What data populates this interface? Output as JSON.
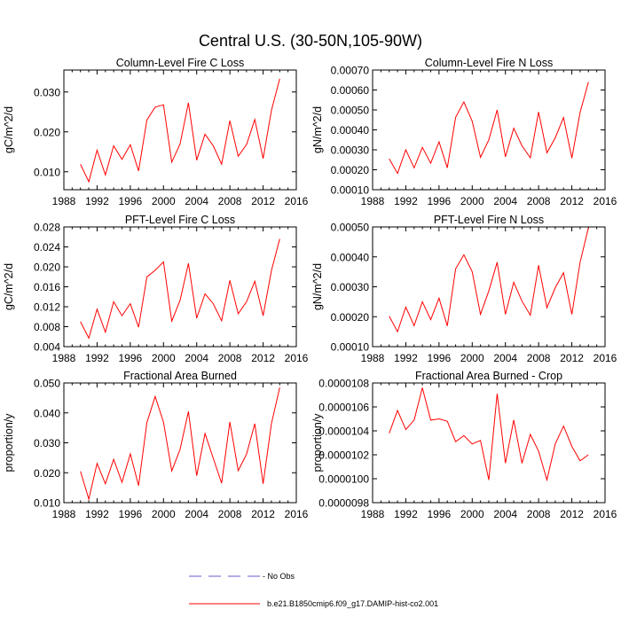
{
  "page": {
    "title": "Central U.S. (30-50N,105-90W)"
  },
  "legend": {
    "items": [
      {
        "label": "- No Obs",
        "style": "dashed",
        "color": "#6a5acd"
      },
      {
        "label": "b.e21.B1850cmip6.f09_g17.DAMIP-hist-co2.001",
        "style": "solid",
        "color": "#ff0000"
      }
    ]
  },
  "chart_data": [
    {
      "type": "line",
      "title": "Column-Level Fire C Loss",
      "ylabel": "gC/m^2/d",
      "xlim": [
        1988,
        2016
      ],
      "xticks": [
        "1988",
        "1992",
        "1996",
        "2000",
        "2004",
        "2008",
        "2012",
        "2016"
      ],
      "ylim": [
        0.0055,
        0.0355
      ],
      "yticks": [
        "0.010",
        "0.020",
        "0.030"
      ],
      "x": [
        1990,
        1991,
        1992,
        1993,
        1994,
        1995,
        1996,
        1997,
        1998,
        1999,
        2000,
        2001,
        2002,
        2003,
        2004,
        2005,
        2006,
        2007,
        2008,
        2009,
        2010,
        2011,
        2012,
        2013,
        2014
      ],
      "series": [
        {
          "color": "#ff0000",
          "values": [
            0.0119,
            0.0075,
            0.0154,
            0.0092,
            0.0165,
            0.0131,
            0.0168,
            0.0102,
            0.023,
            0.0262,
            0.0268,
            0.0124,
            0.017,
            0.0273,
            0.0129,
            0.0194,
            0.0165,
            0.0119,
            0.0228,
            0.0139,
            0.0168,
            0.0231,
            0.0133,
            0.0253,
            0.0333
          ]
        }
      ]
    },
    {
      "type": "line",
      "title": "Column-Level Fire N Loss",
      "ylabel": "gN/m^2/d",
      "xlim": [
        1988,
        2016
      ],
      "xticks": [
        "1988",
        "1992",
        "1996",
        "2000",
        "2004",
        "2008",
        "2012",
        "2016"
      ],
      "ylim": [
        0.0001,
        0.0007
      ],
      "yticks": [
        "0.00010",
        "0.00020",
        "0.00030",
        "0.00040",
        "0.00050",
        "0.00060",
        "0.00070"
      ],
      "x": [
        1990,
        1991,
        1992,
        1993,
        1994,
        1995,
        1996,
        1997,
        1998,
        1999,
        2000,
        2001,
        2002,
        2003,
        2004,
        2005,
        2006,
        2007,
        2008,
        2009,
        2010,
        2011,
        2012,
        2013,
        2014
      ],
      "series": [
        {
          "color": "#ff0000",
          "values": [
            0.000255,
            0.000182,
            0.0003,
            0.00021,
            0.000312,
            0.000233,
            0.00034,
            0.00021,
            0.000463,
            0.00054,
            0.000443,
            0.000262,
            0.00035,
            0.0005,
            0.000265,
            0.000408,
            0.00032,
            0.00026,
            0.00049,
            0.000285,
            0.00036,
            0.000462,
            0.000258,
            0.000488,
            0.00064
          ]
        }
      ]
    },
    {
      "type": "line",
      "title": "PFT-Level Fire C Loss",
      "ylabel": "gC/m^2/d",
      "xlim": [
        1988,
        2016
      ],
      "xticks": [
        "1988",
        "1992",
        "1996",
        "2000",
        "2004",
        "2008",
        "2012",
        "2016"
      ],
      "ylim": [
        0.004,
        0.028
      ],
      "yticks": [
        "0.004",
        "0.008",
        "0.012",
        "0.016",
        "0.020",
        "0.024",
        "0.028"
      ],
      "x": [
        1990,
        1991,
        1992,
        1993,
        1994,
        1995,
        1996,
        1997,
        1998,
        1999,
        2000,
        2001,
        2002,
        2003,
        2004,
        2005,
        2006,
        2007,
        2008,
        2009,
        2010,
        2011,
        2012,
        2013,
        2014
      ],
      "series": [
        {
          "color": "#ff0000",
          "values": [
            0.009,
            0.0057,
            0.0115,
            0.0069,
            0.013,
            0.0102,
            0.0126,
            0.0079,
            0.018,
            0.0193,
            0.021,
            0.0091,
            0.0133,
            0.0207,
            0.0097,
            0.0146,
            0.0126,
            0.0092,
            0.0173,
            0.0106,
            0.013,
            0.0171,
            0.0102,
            0.0192,
            0.0256
          ]
        }
      ]
    },
    {
      "type": "line",
      "title": "PFT-Level Fire N Loss",
      "ylabel": "gN/m^2/d",
      "xlim": [
        1988,
        2016
      ],
      "xticks": [
        "1988",
        "1992",
        "1996",
        "2000",
        "2004",
        "2008",
        "2012",
        "2016"
      ],
      "ylim": [
        0.0001,
        0.0005
      ],
      "yticks": [
        "0.00010",
        "0.00020",
        "0.00030",
        "0.00040",
        "0.00050"
      ],
      "x": [
        1990,
        1991,
        1992,
        1993,
        1994,
        1995,
        1996,
        1997,
        1998,
        1999,
        2000,
        2001,
        2002,
        2003,
        2004,
        2005,
        2006,
        2007,
        2008,
        2009,
        2010,
        2011,
        2012,
        2013,
        2014
      ],
      "series": [
        {
          "color": "#ff0000",
          "values": [
            0.000202,
            0.00015,
            0.000232,
            0.00017,
            0.00025,
            0.00019,
            0.000262,
            0.000169,
            0.00036,
            0.000407,
            0.00035,
            0.000208,
            0.000286,
            0.000382,
            0.000208,
            0.000315,
            0.000252,
            0.000205,
            0.000372,
            0.00023,
            0.000297,
            0.000347,
            0.000208,
            0.000382,
            0.000498
          ]
        }
      ]
    },
    {
      "type": "line",
      "title": "Fractional Area Burned",
      "ylabel": "proportion/y",
      "xlim": [
        1988,
        2016
      ],
      "xticks": [
        "1988",
        "1992",
        "1996",
        "2000",
        "2004",
        "2008",
        "2012",
        "2016"
      ],
      "ylim": [
        0.01,
        0.05
      ],
      "yticks": [
        "0.010",
        "0.020",
        "0.030",
        "0.040",
        "0.050"
      ],
      "x": [
        1990,
        1991,
        1992,
        1993,
        1994,
        1995,
        1996,
        1997,
        1998,
        1999,
        2000,
        2001,
        2002,
        2003,
        2004,
        2005,
        2006,
        2007,
        2008,
        2009,
        2010,
        2011,
        2012,
        2013,
        2014
      ],
      "series": [
        {
          "color": "#ff0000",
          "values": [
            0.0205,
            0.0112,
            0.0231,
            0.0163,
            0.0245,
            0.0168,
            0.0263,
            0.0157,
            0.0368,
            0.0455,
            0.0369,
            0.0206,
            0.0278,
            0.0405,
            0.019,
            0.0331,
            0.0248,
            0.0165,
            0.037,
            0.0207,
            0.0262,
            0.0364,
            0.0163,
            0.0363,
            0.0485
          ]
        }
      ]
    },
    {
      "type": "line",
      "title": "Fractional Area Burned - Crop",
      "ylabel": "proportion/y",
      "xlim": [
        1988,
        2016
      ],
      "xticks": [
        "1988",
        "1992",
        "1996",
        "2000",
        "2004",
        "2008",
        "2012",
        "2016"
      ],
      "ylim": [
        9.8e-06,
        1.08e-05
      ],
      "yticks": [
        "0.0000098",
        "0.0000100",
        "0.0000102",
        "0.0000104",
        "0.0000106",
        "0.0000108"
      ],
      "x": [
        1990,
        1991,
        1992,
        1993,
        1994,
        1995,
        1996,
        1997,
        1998,
        1999,
        2000,
        2001,
        2002,
        2003,
        2004,
        2005,
        2006,
        2007,
        2008,
        2009,
        2010,
        2011,
        2012,
        2013,
        2014
      ],
      "series": [
        {
          "color": "#ff0000",
          "values": [
            1.038e-05,
            1.057e-05,
            1.041e-05,
            1.049e-05,
            1.076e-05,
            1.049e-05,
            1.05e-05,
            1.048e-05,
            1.031e-05,
            1.036e-05,
            1.029e-05,
            1.032e-05,
            9.99e-06,
            1.071e-05,
            1.013e-05,
            1.049e-05,
            1.013e-05,
            1.037e-05,
            1.023e-05,
            9.99e-06,
            1.029e-05,
            1.044e-05,
            1.027e-05,
            1.015e-05,
            1.02e-05
          ]
        }
      ]
    }
  ]
}
